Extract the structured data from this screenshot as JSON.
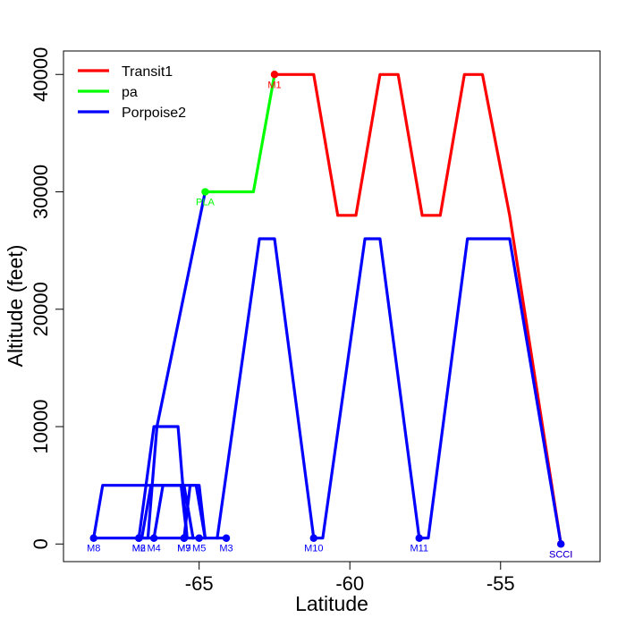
{
  "chart_data": {
    "type": "line",
    "xlabel": "Latitude",
    "ylabel": "Altitude (feet)",
    "xlim": [
      -69.5,
      -51.7
    ],
    "ylim": [
      -1500,
      42000
    ],
    "xticks": [
      -65,
      -60,
      -55
    ],
    "yticks": [
      0,
      10000,
      20000,
      30000,
      40000
    ],
    "legend": {
      "placement": "top-left"
    },
    "grid": false,
    "series": [
      {
        "name": "Transit1",
        "color": "#ff0000",
        "x": [
          -62.5,
          -61.2,
          -60.4,
          -59.8,
          -59.0,
          -58.4,
          -57.6,
          -57.0,
          -56.2,
          -55.6,
          -54.7,
          -53.0
        ],
        "y": [
          40000,
          40000,
          28000,
          28000,
          40000,
          40000,
          28000,
          28000,
          40000,
          40000,
          28000,
          0
        ]
      },
      {
        "name": "pa",
        "color": "#00ff00",
        "x": [
          -64.8,
          -63.2,
          -62.5
        ],
        "y": [
          30000,
          30000,
          40000
        ]
      },
      {
        "name": "Porpoise2",
        "color": "#0000ff",
        "paths": [
          {
            "x": [
              -68.5,
              -64.1
            ],
            "y": [
              500,
              500
            ]
          },
          {
            "x": [
              -68.5,
              -68.2,
              -65.1,
              -64.8
            ],
            "y": [
              500,
              5000,
              5000,
              500
            ]
          },
          {
            "x": [
              -67.0,
              -66.5,
              -65.7,
              -65.4
            ],
            "y": [
              500,
              10000,
              10000,
              500
            ]
          },
          {
            "x": [
              -66.5,
              -66.2,
              -65.6,
              -65.4
            ],
            "y": [
              500,
              5000,
              5000,
              500
            ]
          },
          {
            "x": [
              -66.9,
              -66.6,
              -65.5,
              -65.2
            ],
            "y": [
              500,
              5000,
              5000,
              500
            ]
          },
          {
            "x": [
              -65.5,
              -65.3,
              -65.0,
              -64.8
            ],
            "y": [
              500,
              5000,
              5000,
              500
            ]
          },
          {
            "x": [
              -64.4,
              -63.0,
              -62.5,
              -61.2,
              -60.9,
              -59.5,
              -59.0,
              -57.7,
              -57.4,
              -56.1,
              -54.7,
              -53.0
            ],
            "y": [
              500,
              26000,
              26000,
              500,
              500,
              26000,
              26000,
              500,
              500,
              26000,
              26000,
              0
            ]
          },
          {
            "x": [
              -67.0,
              -66.7,
              -66.4,
              -64.8
            ],
            "y": [
              500,
              500,
              10000,
              30000
            ]
          }
        ]
      }
    ],
    "points": [
      {
        "label": "M1",
        "x": -62.5,
        "y": 40000,
        "color": "#ff0000"
      },
      {
        "label": "PLA",
        "x": -64.8,
        "y": 30000,
        "color": "#00ff00"
      },
      {
        "label": "SCCI",
        "x": -53.0,
        "y": 0,
        "color": "#ff0000"
      },
      {
        "label": "SCCI",
        "x": -53.0,
        "y": 0,
        "color": "#0000ff"
      },
      {
        "label": "M8",
        "x": -68.5,
        "y": 500,
        "color": "#0000ff"
      },
      {
        "label": "M2",
        "x": -67.0,
        "y": 500,
        "color": "#0000ff"
      },
      {
        "label": "M6",
        "x": -67.0,
        "y": 500,
        "color": "#0000ff"
      },
      {
        "label": "M4",
        "x": -66.5,
        "y": 500,
        "color": "#0000ff"
      },
      {
        "label": "M7",
        "x": -65.5,
        "y": 500,
        "color": "#0000ff"
      },
      {
        "label": "M9",
        "x": -65.5,
        "y": 500,
        "color": "#0000ff"
      },
      {
        "label": "M5",
        "x": -65.0,
        "y": 500,
        "color": "#0000ff"
      },
      {
        "label": "M3",
        "x": -64.1,
        "y": 500,
        "color": "#0000ff"
      },
      {
        "label": "M10",
        "x": -61.2,
        "y": 500,
        "color": "#0000ff"
      },
      {
        "label": "M11",
        "x": -57.7,
        "y": 500,
        "color": "#0000ff"
      }
    ]
  }
}
